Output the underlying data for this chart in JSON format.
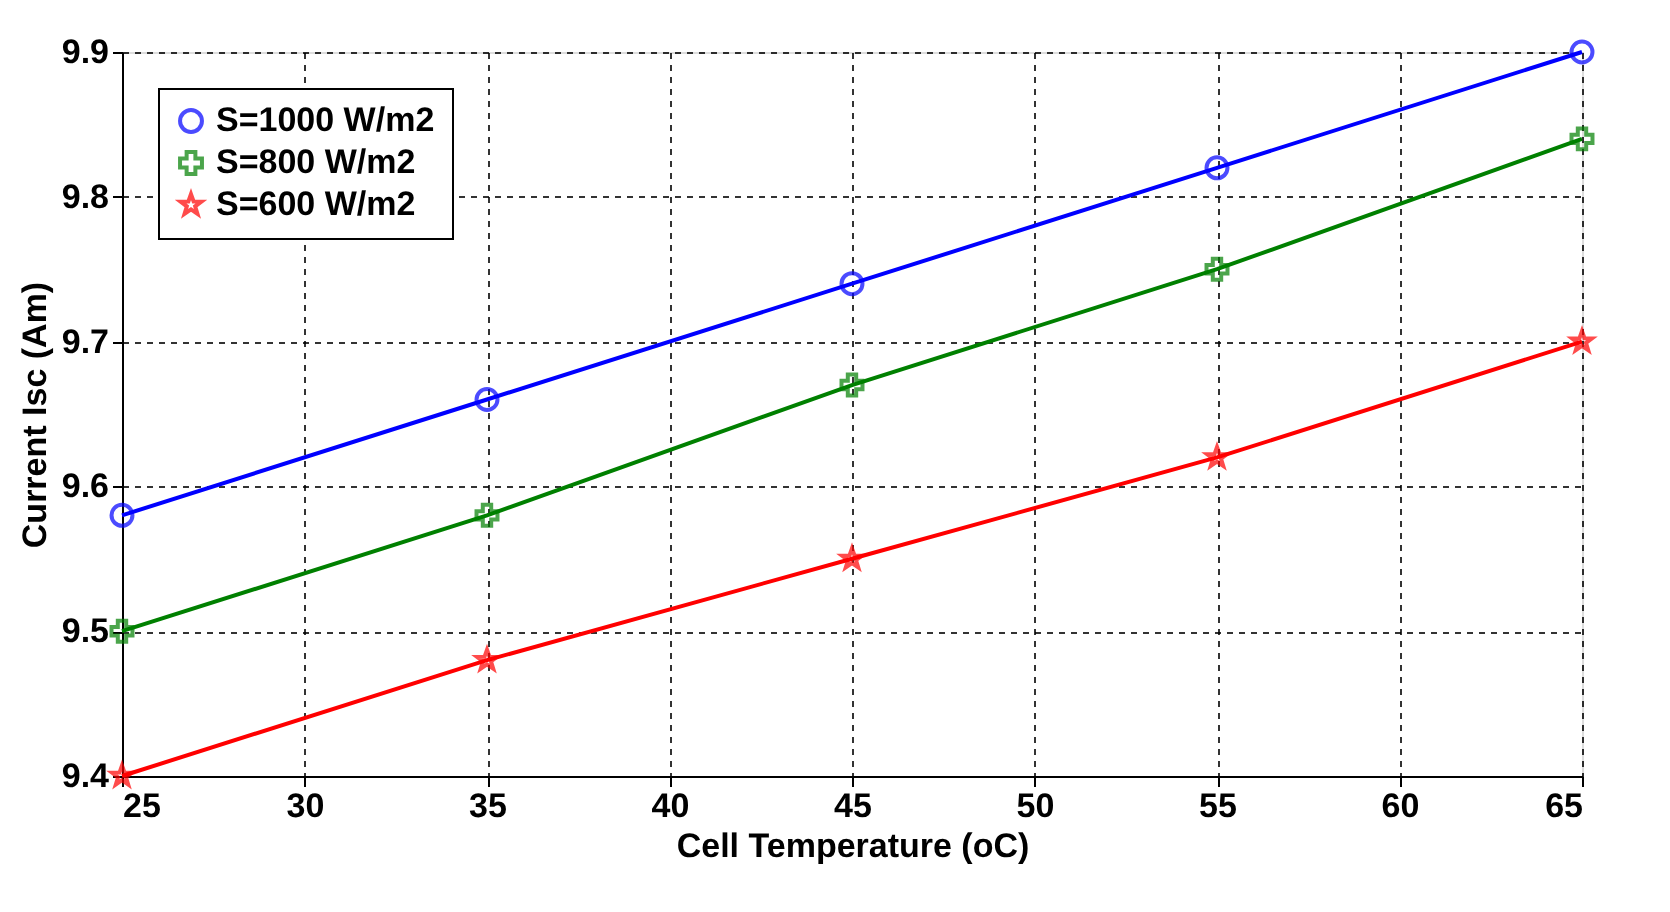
{
  "chart_data": {
    "type": "line",
    "xlabel": "Cell Temperature (oC)",
    "ylabel": "Current Isc (Am)",
    "x": [
      25,
      35,
      45,
      55,
      65
    ],
    "series": [
      {
        "name": "S=1000 W/m2",
        "color": "#0000ff",
        "marker": "circle",
        "values": [
          9.58,
          9.66,
          9.74,
          9.82,
          9.9
        ]
      },
      {
        "name": "S=800 W/m2",
        "color": "#008000",
        "marker": "cross",
        "values": [
          9.5,
          9.58,
          9.67,
          9.75,
          9.84
        ]
      },
      {
        "name": "S=600 W/m2",
        "color": "#ff0000",
        "marker": "star",
        "values": [
          9.4,
          9.48,
          9.55,
          9.62,
          9.7
        ]
      }
    ],
    "xlim": [
      25,
      65
    ],
    "xticks": [
      25,
      30,
      35,
      40,
      45,
      50,
      55,
      60,
      65
    ],
    "ylim": [
      9.4,
      9.9
    ],
    "yticks": [
      9.4,
      9.5,
      9.6,
      9.7,
      9.8,
      9.9
    ],
    "grid": true,
    "legend": "top left",
    "line_style": "solid"
  }
}
